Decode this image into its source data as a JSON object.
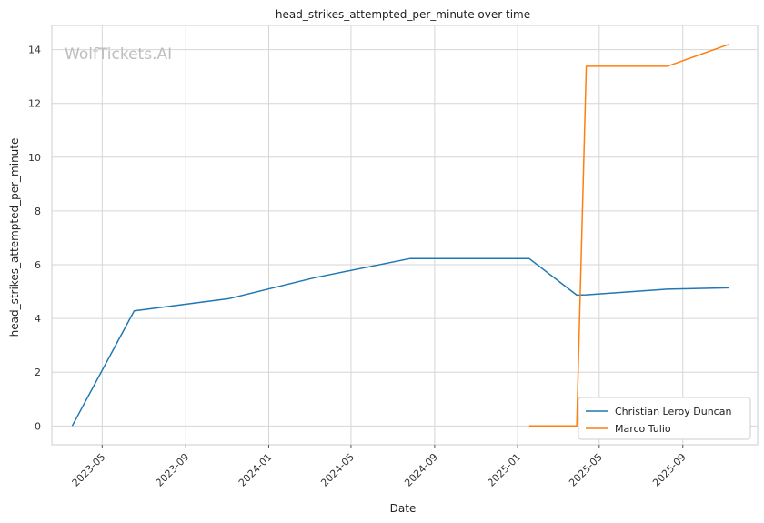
{
  "chart_data": {
    "type": "line",
    "title": "head_strikes_attempted_per_minute over time",
    "xlabel": "Date",
    "ylabel": "head_strikes_attempted_per_minute",
    "watermark": "WolfTickets.AI",
    "x_tick_labels": [
      "2023-05",
      "2023-09",
      "2024-01",
      "2024-05",
      "2024-09",
      "2025-01",
      "2025-05",
      "2025-09"
    ],
    "y_ticks": [
      0,
      2,
      4,
      6,
      8,
      10,
      12,
      14
    ],
    "ylim": [
      -0.7,
      14.9
    ],
    "xlim": [
      "2023-02-16",
      "2025-12-20"
    ],
    "grid": true,
    "legend_position": "bottom-right",
    "series": [
      {
        "name": "Christian Leroy Duncan",
        "color": "#1f77b4",
        "points": [
          {
            "x": "2023-03-18",
            "y": 0
          },
          {
            "x": "2023-06-17",
            "y": 4.28
          },
          {
            "x": "2023-11-04",
            "y": 4.74
          },
          {
            "x": "2024-03-09",
            "y": 5.52
          },
          {
            "x": "2024-07-27",
            "y": 6.23
          },
          {
            "x": "2025-01-18",
            "y": 6.23
          },
          {
            "x": "2025-03-29",
            "y": 4.87
          },
          {
            "x": "2025-04-12",
            "y": 4.88
          },
          {
            "x": "2025-08-09",
            "y": 5.09
          },
          {
            "x": "2025-11-08",
            "y": 5.14
          }
        ]
      },
      {
        "name": "Marco Tulio",
        "color": "#ff7f0e",
        "points": [
          {
            "x": "2025-01-18",
            "y": 0
          },
          {
            "x": "2025-03-29",
            "y": 0
          },
          {
            "x": "2025-04-12",
            "y": 13.38
          },
          {
            "x": "2025-08-09",
            "y": 13.38
          },
          {
            "x": "2025-11-08",
            "y": 14.2
          }
        ]
      }
    ]
  }
}
